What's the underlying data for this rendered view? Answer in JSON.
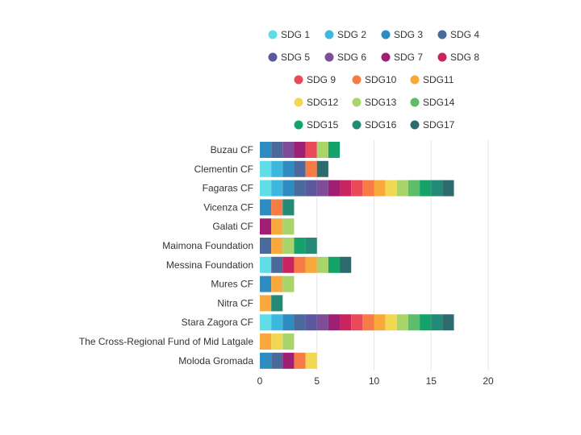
{
  "chart_data": {
    "type": "bar",
    "orientation": "horizontal",
    "stacked": true,
    "title": "",
    "xlabel": "",
    "ylabel": "",
    "xlim": [
      0,
      20
    ],
    "x_ticks": [
      0,
      5,
      10,
      15,
      20
    ],
    "grid": "vertical",
    "legend_position": "top",
    "categories": [
      "Buzau CF",
      "Clementin CF",
      "Fagaras CF",
      "Vicenza CF",
      "Galati CF",
      "Maimona Foundation",
      "Messina Foundation",
      "Mures CF",
      "Nitra CF",
      "Stara Zagora CF",
      "The Cross-Regional Fund of Mid Latgale",
      "Moloda Gromada"
    ],
    "series": [
      {
        "name": "SDG 1",
        "color": "#61dde8",
        "values": [
          0,
          1,
          1,
          0,
          0,
          0,
          1,
          0,
          0,
          1,
          0,
          0
        ]
      },
      {
        "name": "SDG 2",
        "color": "#3cb8de",
        "values": [
          0,
          1,
          1,
          0,
          0,
          0,
          0,
          0,
          0,
          1,
          0,
          0
        ]
      },
      {
        "name": "SDG 3",
        "color": "#2f8cc0",
        "values": [
          1,
          1,
          1,
          1,
          0,
          0,
          0,
          1,
          0,
          1,
          0,
          1
        ]
      },
      {
        "name": "SDG 4",
        "color": "#4a6a9c",
        "values": [
          1,
          1,
          1,
          0,
          0,
          1,
          1,
          0,
          0,
          1,
          0,
          1
        ]
      },
      {
        "name": "SDG 5",
        "color": "#5c58a0",
        "values": [
          0,
          0,
          1,
          0,
          0,
          0,
          0,
          0,
          0,
          1,
          0,
          0
        ]
      },
      {
        "name": "SDG 6",
        "color": "#7f4c98",
        "values": [
          1,
          0,
          1,
          0,
          0,
          0,
          0,
          0,
          0,
          1,
          0,
          0
        ]
      },
      {
        "name": "SDG 7",
        "color": "#a01e74",
        "values": [
          1,
          0,
          1,
          0,
          1,
          0,
          0,
          0,
          0,
          1,
          0,
          1
        ]
      },
      {
        "name": "SDG 8",
        "color": "#c9245f",
        "values": [
          0,
          0,
          1,
          0,
          0,
          0,
          1,
          0,
          0,
          1,
          0,
          0
        ]
      },
      {
        "name": "SDG 9",
        "color": "#e84a5a",
        "values": [
          1,
          0,
          1,
          0,
          0,
          0,
          0,
          0,
          0,
          1,
          0,
          0
        ]
      },
      {
        "name": "SDG10",
        "color": "#f77b45",
        "values": [
          0,
          1,
          1,
          1,
          0,
          0,
          1,
          0,
          0,
          1,
          0,
          1
        ]
      },
      {
        "name": "SDG11",
        "color": "#f9a83c",
        "values": [
          0,
          0,
          1,
          0,
          1,
          1,
          1,
          1,
          1,
          1,
          1,
          0
        ]
      },
      {
        "name": "SDG12",
        "color": "#f1d752",
        "values": [
          0,
          0,
          1,
          0,
          0,
          0,
          0,
          0,
          0,
          1,
          1,
          1
        ]
      },
      {
        "name": "SDG13",
        "color": "#a9d46a",
        "values": [
          1,
          0,
          1,
          0,
          1,
          1,
          1,
          1,
          0,
          1,
          1,
          0
        ]
      },
      {
        "name": "SDG14",
        "color": "#5ebd68",
        "values": [
          0,
          0,
          1,
          0,
          0,
          0,
          0,
          0,
          0,
          1,
          0,
          0
        ]
      },
      {
        "name": "SDG15",
        "color": "#16a36b",
        "values": [
          1,
          0,
          1,
          0,
          0,
          1,
          1,
          0,
          0,
          1,
          0,
          0
        ]
      },
      {
        "name": "SDG16",
        "color": "#238a76",
        "values": [
          0,
          0,
          1,
          1,
          0,
          1,
          0,
          0,
          1,
          1,
          0,
          0
        ]
      },
      {
        "name": "SDG17",
        "color": "#2e6b6e",
        "values": [
          0,
          1,
          1,
          0,
          0,
          0,
          1,
          0,
          0,
          1,
          0,
          0
        ]
      }
    ]
  }
}
